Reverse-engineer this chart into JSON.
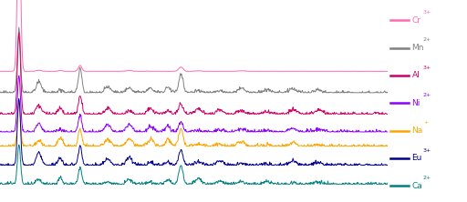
{
  "legend_entries": [
    {
      "label": "Cr",
      "superscript": "3+",
      "color": "#FF69B4"
    },
    {
      "label": "Mn",
      "superscript": "2+",
      "color": "#808080"
    },
    {
      "label": "Al",
      "superscript": "3+",
      "color": "#CC0066"
    },
    {
      "label": "Ni",
      "superscript": "2+",
      "color": "#8B00FF"
    },
    {
      "label": "Na",
      "superscript": "+",
      "color": "#FFA500"
    },
    {
      "label": "Eu",
      "superscript": "3+",
      "color": "#00008B"
    },
    {
      "label": "Ca",
      "superscript": "2+",
      "color": "#008080"
    }
  ],
  "background_color": "#FFFFFF",
  "n_points": 800,
  "x_range": [
    5,
    50
  ],
  "line_colors": [
    "#FF69B4",
    "#808080",
    "#CC0066",
    "#8B00FF",
    "#FFA500",
    "#00008B",
    "#008080"
  ],
  "offsets": [
    0.55,
    0.46,
    0.37,
    0.295,
    0.235,
    0.155,
    0.075
  ],
  "ylim": [
    0.0,
    0.85
  ]
}
